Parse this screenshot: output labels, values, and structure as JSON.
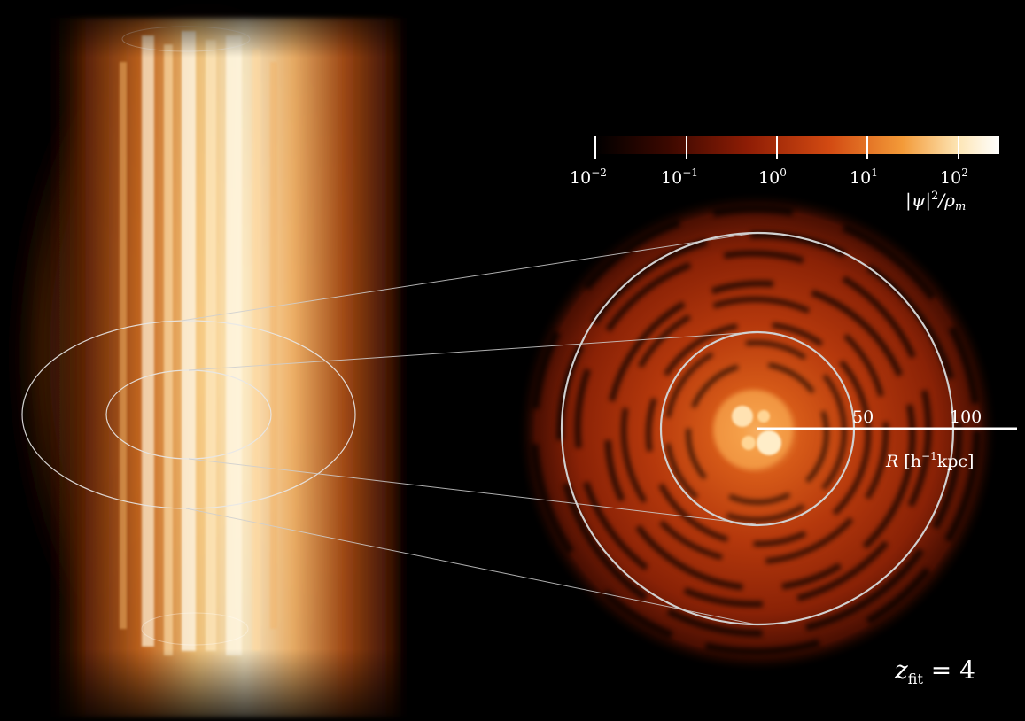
{
  "colorbar": {
    "ticks": [
      "10",
      "10",
      "10",
      "10",
      "10"
    ],
    "exponents": [
      "−2",
      "−1",
      "0",
      "1",
      "2"
    ],
    "title_symbol": "|ψ|",
    "title_exp": "2",
    "title_den": "/ρ",
    "title_sub": "m",
    "colors": [
      "#000000",
      "#3a0800",
      "#8f1d05",
      "#d24a12",
      "#f39a38",
      "#fde6b6",
      "#ffffff"
    ]
  },
  "radial_axis": {
    "ticks": [
      "50",
      "100"
    ],
    "label_var": "R",
    "label_unit_pre": "[h",
    "label_unit_exp": "−1",
    "label_unit_post": "kpc]"
  },
  "annotation": {
    "z_var": "z",
    "z_sub": "fit",
    "z_value": "= 4"
  }
}
